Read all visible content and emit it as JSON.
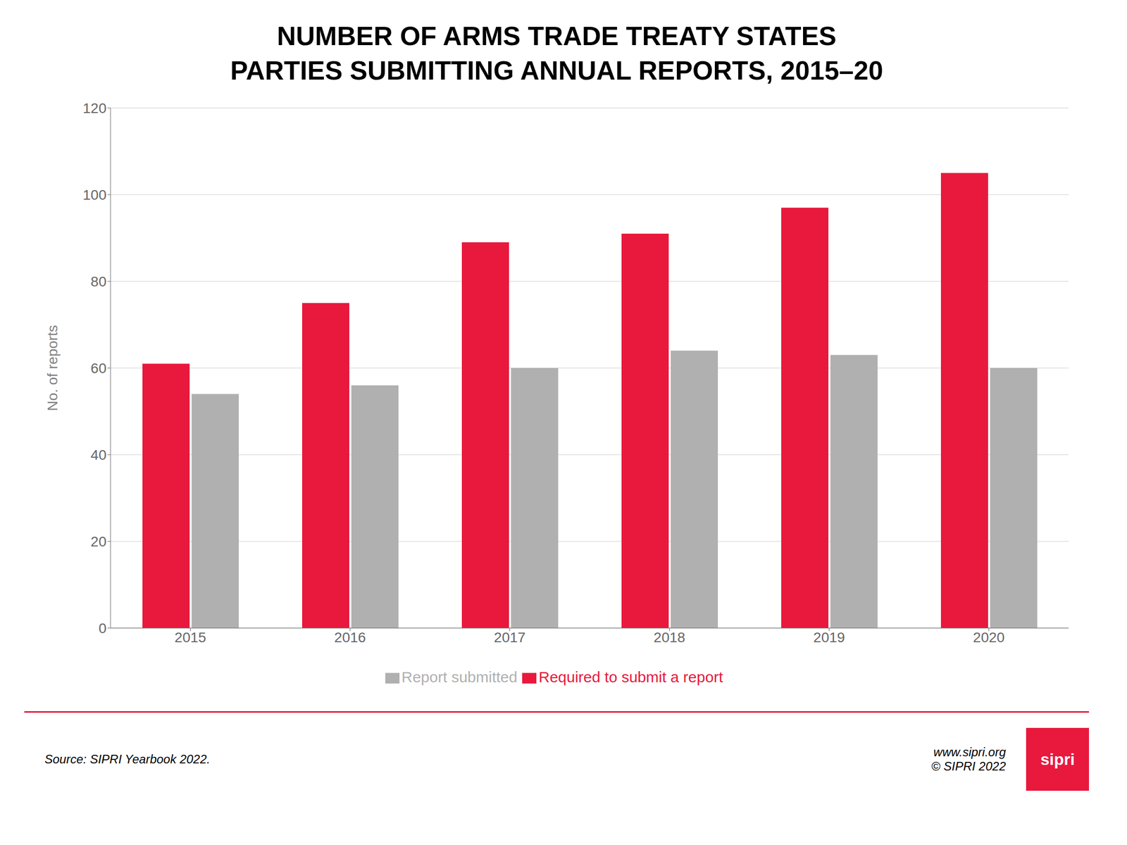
{
  "chart_data": {
    "type": "bar",
    "title": "NUMBER OF ARMS TRADE TREATY STATES",
    "subtitle": "PARTIES SUBMITTING ANNUAL REPORTS, 2015–20",
    "categories": [
      "2015",
      "2016",
      "2017",
      "2018",
      "2019",
      "2020"
    ],
    "series": [
      {
        "name": "Required to submit a report",
        "color": "#E8193C",
        "values": [
          61,
          75,
          89,
          91,
          97,
          105
        ]
      },
      {
        "name": "Report submitted",
        "color": "#B0B0B0",
        "values": [
          54,
          56,
          60,
          64,
          63,
          60
        ]
      }
    ],
    "ylabel": "No. of reports",
    "ylim": [
      0,
      120
    ],
    "yticks": [
      0,
      20,
      40,
      60,
      80,
      100,
      120
    ],
    "grid": true,
    "legend": "bottom",
    "annotations": [
      "Source: SIPRI Yearbook 2022.",
      "www.sipri.org",
      "© SIPRI 2022",
      "sipri"
    ]
  }
}
